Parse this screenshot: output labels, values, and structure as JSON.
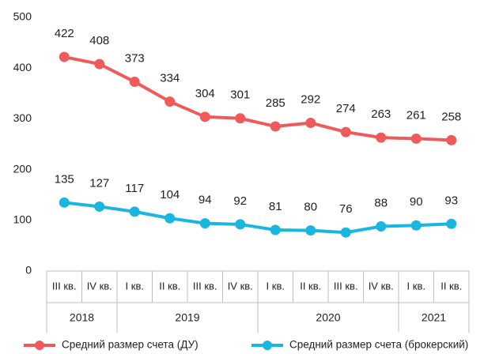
{
  "chart_data": {
    "type": "line",
    "categories": [
      "III кв.",
      "IV кв.",
      "I кв.",
      "II кв.",
      "III кв.",
      "IV кв.",
      "I кв.",
      "II кв.",
      "III кв.",
      "IV кв.",
      "I кв.",
      "II кв."
    ],
    "year_groups": [
      {
        "label": "2018",
        "span": 2
      },
      {
        "label": "2019",
        "span": 4
      },
      {
        "label": "2020",
        "span": 4
      },
      {
        "label": "2021",
        "span": 2
      }
    ],
    "series": [
      {
        "name": "Средний размер счета (ДУ)",
        "color": "#f05a5b",
        "values": [
          422,
          408,
          373,
          334,
          304,
          301,
          285,
          292,
          274,
          263,
          261,
          258
        ]
      },
      {
        "name": "Средний размер счета (брокерский)",
        "color": "#19b6df",
        "values": [
          135,
          127,
          117,
          104,
          94,
          92,
          81,
          80,
          76,
          88,
          90,
          93
        ]
      }
    ],
    "ylim": [
      0,
      500
    ],
    "yticks": [
      0,
      100,
      200,
      300,
      400,
      500
    ],
    "grid": false,
    "legend": "bottom"
  }
}
